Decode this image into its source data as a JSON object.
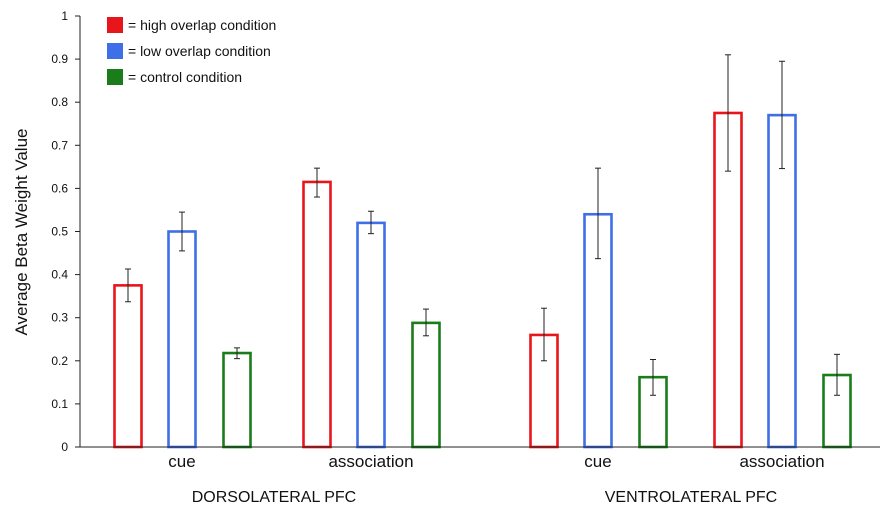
{
  "chart_data": {
    "type": "bar",
    "ylabel": "Average Beta Weight Value",
    "xlabel": "",
    "ylim": [
      0,
      1
    ],
    "yticks": [
      "0",
      "0.1",
      "0.2",
      "0.3",
      "0.4",
      "0.5",
      "0.6",
      "0.7",
      "0.8",
      "0.9",
      "1"
    ],
    "grid": false,
    "legend_placement": "top-left",
    "categories": [
      "cue",
      "association",
      "cue",
      "association"
    ],
    "groups": [
      {
        "label": "DORSOLATERAL PFC",
        "categories": [
          "cue",
          "association"
        ]
      },
      {
        "label": "VENTROLATERAL PFC",
        "categories": [
          "cue",
          "association"
        ]
      }
    ],
    "series": [
      {
        "name": "= high overlap condition",
        "color": "#e8161b",
        "values": [
          0.375,
          0.615,
          0.26,
          0.775
        ],
        "error_low": [
          0.337,
          0.58,
          0.2,
          0.64
        ],
        "error_high": [
          0.413,
          0.647,
          0.322,
          0.91
        ]
      },
      {
        "name": "= low overlap condition",
        "color": "#3f6fe8",
        "values": [
          0.5,
          0.52,
          0.54,
          0.77
        ],
        "error_low": [
          0.455,
          0.495,
          0.437,
          0.646
        ],
        "error_high": [
          0.545,
          0.547,
          0.647,
          0.895
        ]
      },
      {
        "name": "= control condition",
        "color": "#1a7d1a",
        "values": [
          0.218,
          0.288,
          0.162,
          0.167
        ],
        "error_low": [
          0.205,
          0.258,
          0.12,
          0.12
        ],
        "error_high": [
          0.23,
          0.32,
          0.203,
          0.215
        ]
      }
    ]
  }
}
